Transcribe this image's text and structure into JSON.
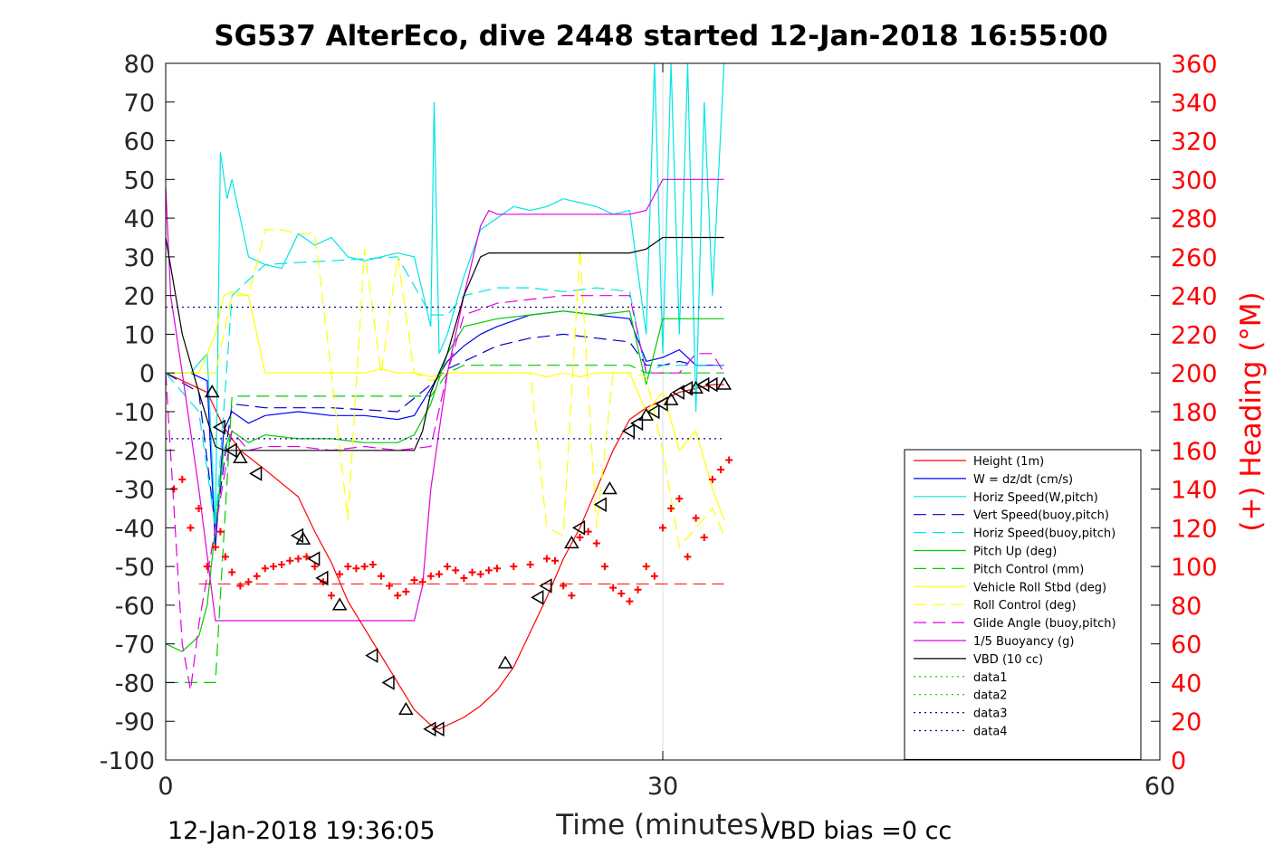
{
  "chart_data": {
    "type": "line",
    "title": "SG537 AlterEco, dive 2448 started 12-Jan-2018 16:55:00",
    "xlabel": "Time (minutes)",
    "ylabel_right": "(+) Heading (°M)",
    "xlim": [
      0,
      60
    ],
    "ylim": [
      -100,
      80
    ],
    "ylim_right": [
      0,
      360
    ],
    "x_ticks": [
      "0",
      "30",
      "60"
    ],
    "y_ticks": [
      "80",
      "70",
      "60",
      "50",
      "40",
      "30",
      "20",
      "10",
      "0",
      "-10",
      "-20",
      "-30",
      "-40",
      "-50",
      "-60",
      "-70",
      "-80",
      "-90",
      "-100"
    ],
    "y_ticks_right": [
      "360",
      "340",
      "320",
      "300",
      "280",
      "260",
      "240",
      "220",
      "200",
      "180",
      "160",
      "140",
      "120",
      "100",
      "80",
      "60",
      "40",
      "20",
      "0"
    ],
    "grid": "x only at 30",
    "legend_position": "lower-right",
    "footer_left": "12-Jan-2018 19:36:05",
    "footer_right": "VBD bias =0 cc",
    "series": [
      {
        "name": "Height (1m)",
        "color": "#ff0000",
        "style": "solid",
        "x": [
          0,
          2.5,
          3.5,
          4.5,
          6,
          8,
          9,
          10,
          11,
          12,
          13,
          14,
          15,
          15.5,
          16,
          16.5,
          17,
          17.5,
          18,
          19,
          20,
          21,
          22,
          23,
          24,
          25,
          26,
          27,
          28,
          29,
          30,
          31,
          32,
          33,
          33.7
        ],
        "y": [
          0,
          -5,
          -14,
          -20,
          -25,
          -32,
          -41,
          -49,
          -59,
          -66,
          -73,
          -80,
          -87,
          -89,
          -91,
          -92,
          -91,
          -90,
          -89,
          -86,
          -82,
          -76,
          -67,
          -58,
          -48,
          -40,
          -30,
          -20,
          -12,
          -9,
          -7,
          -5,
          -4,
          -3,
          -3
        ]
      },
      {
        "name": "W = dz/dt (cm/s)",
        "color": "#0000ff",
        "style": "solid",
        "x": [
          0,
          1.5,
          2.5,
          3,
          3.5,
          4,
          5,
          6,
          8,
          10,
          12,
          14,
          15,
          16,
          17,
          18,
          19,
          20,
          22,
          24,
          26,
          28,
          29,
          30,
          31,
          32,
          33,
          33.7
        ],
        "y": [
          0,
          0,
          -2,
          -45,
          -15,
          -10,
          -13,
          -11,
          -10,
          -11,
          -11,
          -12,
          -11,
          -4,
          3,
          7,
          10,
          12,
          15,
          16,
          15,
          14,
          3,
          4,
          6,
          2,
          2,
          2
        ]
      },
      {
        "name": "Horiz Speed(W,pitch)",
        "color": "#00e5e5",
        "style": "solid",
        "x": [
          0,
          1.5,
          2.5,
          3,
          3.3,
          3.7,
          4,
          5,
          6,
          7,
          8,
          9,
          10,
          11,
          12,
          13,
          14,
          15,
          16,
          16.2,
          16.5,
          17,
          18,
          19,
          20,
          21,
          22,
          23,
          24,
          25,
          26,
          27,
          28,
          29,
          29.5,
          30,
          30.5,
          31,
          31.5,
          32,
          32.5,
          33,
          33.7
        ],
        "y": [
          0,
          0,
          5,
          -40,
          57,
          45,
          50,
          30,
          28,
          27,
          36,
          33,
          35,
          30,
          29,
          30,
          31,
          30,
          12,
          70,
          5,
          10,
          25,
          37,
          40,
          43,
          42,
          43,
          45,
          44,
          43,
          41,
          42,
          10,
          80,
          5,
          80,
          10,
          80,
          -10,
          70,
          20,
          80
        ]
      },
      {
        "name": "Vert Speed(buoy,pitch)",
        "color": "#0000cc",
        "style": "dashed",
        "x": [
          0,
          2,
          3,
          4,
          6,
          10,
          14,
          16,
          17,
          18,
          20,
          22,
          24,
          26,
          28,
          29,
          30,
          31,
          32,
          33,
          33.7
        ],
        "y": [
          0,
          -5,
          -40,
          -8,
          -9,
          -9,
          -10,
          -3,
          1,
          3,
          7,
          9,
          10,
          9,
          8,
          2,
          2,
          3,
          2,
          2,
          2
        ]
      },
      {
        "name": "Horiz Speed(buoy,pitch)",
        "color": "#00e5e5",
        "style": "dashed",
        "x": [
          0,
          2,
          3,
          4,
          6,
          10,
          14,
          16,
          17,
          18,
          20,
          22,
          24,
          26,
          28,
          29,
          30,
          31,
          32,
          33,
          33.7
        ],
        "y": [
          0,
          -10,
          -40,
          20,
          28,
          29,
          30,
          15,
          15,
          20,
          22,
          22,
          21,
          22,
          21,
          0,
          2,
          2,
          2,
          2,
          2
        ]
      },
      {
        "name": "Pitch Up (deg)",
        "color": "#00cc00",
        "style": "solid",
        "x": [
          0,
          1,
          2,
          2.5,
          3,
          3.5,
          4,
          5,
          6,
          8,
          10,
          12,
          14,
          15,
          16,
          17,
          18,
          20,
          22,
          24,
          26,
          28,
          29,
          30,
          31,
          32,
          33,
          33.7
        ],
        "y": [
          -70,
          -72,
          -68,
          -60,
          -40,
          -20,
          -15,
          -18,
          -16,
          -17,
          -17,
          -18,
          -18,
          -16,
          -8,
          5,
          12,
          14,
          15,
          16,
          15,
          16,
          -3,
          14,
          14,
          14,
          14,
          14
        ]
      },
      {
        "name": "Pitch Control (mm)",
        "color": "#00cc00",
        "style": "dashed",
        "x": [
          0,
          2,
          3,
          4,
          6,
          10,
          14,
          16,
          17,
          18,
          22,
          26,
          28,
          29,
          33.7
        ],
        "y": [
          -80,
          -80,
          -80,
          -6,
          -6,
          -6,
          -6,
          -6,
          0,
          2,
          2,
          2,
          2,
          0,
          0
        ]
      },
      {
        "name": "Vehicle Roll Stbd (deg)",
        "color": "#ffff00",
        "style": "solid",
        "x": [
          0,
          1,
          2,
          3,
          3.5,
          4,
          5,
          6,
          8,
          9,
          10,
          11,
          12,
          13,
          14,
          15,
          16,
          17,
          18,
          20,
          22,
          23,
          24,
          25,
          26,
          27,
          28,
          29,
          30,
          31,
          32,
          33,
          33.7
        ],
        "y": [
          0,
          0,
          0,
          10,
          20,
          21,
          20,
          0,
          0,
          0,
          0,
          0,
          0,
          1,
          0,
          0,
          -1,
          0,
          0,
          0,
          0,
          -1,
          0,
          -1,
          0,
          0,
          0,
          -10,
          -5,
          -20,
          -15,
          -30,
          -38
        ]
      },
      {
        "name": "Roll Control (deg)",
        "color": "#ffff00",
        "style": "dashed",
        "x": [
          0,
          2,
          3,
          4,
          5,
          6,
          7,
          8,
          9,
          10,
          11,
          12,
          13,
          14,
          15,
          16,
          17,
          18,
          20,
          22,
          23,
          24,
          25,
          26,
          27,
          28,
          29,
          30,
          31,
          32,
          33,
          33.7
        ],
        "y": [
          0,
          0,
          0,
          20,
          20,
          37,
          37,
          36,
          36,
          0,
          -38,
          32,
          0,
          30,
          0,
          -2,
          0,
          0,
          0,
          0,
          -40,
          -42,
          32,
          -40,
          0,
          0,
          -1,
          -20,
          -45,
          -40,
          -35,
          -42
        ]
      },
      {
        "name": "Glide Angle (buoy,pitch)",
        "color": "#e000e0",
        "style": "dashed",
        "x": [
          0,
          1,
          1.5,
          2,
          3,
          4,
          5,
          6,
          8,
          10,
          12,
          14,
          16,
          17,
          18,
          20,
          22,
          24,
          26,
          28,
          29,
          30,
          31,
          32,
          33,
          33.7
        ],
        "y": [
          0,
          -70,
          -82,
          -65,
          -40,
          -15,
          -20,
          -19,
          -19,
          -20,
          -19,
          -20,
          -19,
          0,
          15,
          18,
          19,
          20,
          20,
          20,
          0,
          0,
          0,
          5,
          5,
          0
        ]
      },
      {
        "name": "1/5 Buoyancy (g)",
        "color": "#e000e0",
        "style": "solid",
        "x": [
          0,
          0.3,
          1,
          2,
          3,
          4,
          5,
          10,
          14,
          15,
          15.5,
          16,
          17,
          18,
          19,
          19.5,
          20,
          28,
          29,
          30,
          32,
          33.7
        ],
        "y": [
          48,
          20,
          0,
          -30,
          -64,
          -64,
          -64,
          -64,
          -64,
          -64,
          -55,
          -30,
          0,
          20,
          38,
          42,
          41,
          41,
          42,
          50,
          50,
          50
        ]
      },
      {
        "name": "VBD (10 cc)",
        "color": "#000000",
        "style": "solid",
        "x": [
          0,
          1,
          2,
          3,
          3.5,
          4,
          10,
          14,
          15,
          15.5,
          16,
          17,
          18,
          19,
          19.5,
          20,
          28,
          29,
          30,
          32,
          33.7
        ],
        "y": [
          35,
          10,
          -5,
          -19,
          -20,
          -20,
          -20,
          -20,
          -20,
          -15,
          -5,
          5,
          20,
          30,
          31,
          31,
          31,
          32,
          35,
          35,
          35
        ]
      },
      {
        "name": "data1",
        "color": "#00cc00",
        "style": "dotted",
        "x": [],
        "y": []
      },
      {
        "name": "data2",
        "color": "#00cc00",
        "style": "dotted",
        "x": [],
        "y": []
      },
      {
        "name": "data3",
        "color": "#000080",
        "style": "dotted",
        "x": [
          0,
          33.7
        ],
        "y": [
          17,
          17
        ]
      },
      {
        "name": "data4",
        "color": "#000080",
        "style": "dotted",
        "x": [
          0,
          33.7
        ],
        "y": [
          -17,
          -17
        ]
      }
    ],
    "heading_points": {
      "color": "#ff0000",
      "marker": "+",
      "x": [
        0.5,
        1,
        1.5,
        2,
        2.5,
        3,
        3.3,
        3.6,
        4,
        4.5,
        5,
        5.5,
        6,
        6.5,
        7,
        7.5,
        8,
        8.5,
        9,
        9.5,
        10,
        10.5,
        11,
        11.5,
        12,
        12.5,
        13,
        13.5,
        14,
        14.5,
        15,
        15.5,
        16,
        16.5,
        17,
        17.5,
        18,
        18.5,
        19,
        19.5,
        20,
        21,
        22,
        23,
        23.5,
        24,
        24.5,
        25,
        25.5,
        26,
        26.5,
        27,
        27.5,
        28,
        28.5,
        29,
        29.5,
        30,
        30.5,
        31,
        31.5,
        32,
        32.5,
        33,
        33.5,
        34
      ],
      "y": [
        140,
        145,
        120,
        130,
        100,
        110,
        118,
        105,
        97,
        90,
        92,
        95,
        99,
        100,
        101,
        103,
        104,
        105,
        100,
        92,
        85,
        96,
        100,
        99,
        100,
        101,
        95,
        90,
        85,
        87,
        93,
        92,
        95,
        96,
        100,
        98,
        94,
        97,
        96,
        98,
        99,
        100,
        101,
        104,
        103,
        90,
        85,
        115,
        118,
        112,
        100,
        89,
        86,
        82,
        88,
        100,
        95,
        120,
        130,
        135,
        105,
        125,
        115,
        145,
        150,
        155
      ]
    },
    "heading_reference": {
      "color": "#ff0000",
      "style": "dashed",
      "value": 91
    },
    "triangle_markers": {
      "color": "#000000",
      "x": [
        2.8,
        3.3,
        4,
        4.5,
        5.5,
        8,
        8.3,
        9,
        9.5,
        10.5,
        12.5,
        13.5,
        14.5,
        16,
        16.5,
        20.5,
        22.5,
        23,
        24.5,
        25,
        26.3,
        26.8,
        28,
        28.5,
        29,
        29.5,
        30,
        30.5,
        31,
        31.5,
        32,
        32.5,
        33,
        33.7
      ],
      "y": [
        -5,
        -14,
        -20,
        -22,
        -26,
        -42,
        -43,
        -48,
        -53,
        -60,
        -73,
        -80,
        -87,
        -92,
        -92,
        -75,
        -58,
        -55,
        -44,
        -40,
        -34,
        -30,
        -15,
        -13,
        -11,
        -10,
        -8,
        -7,
        -5,
        -4,
        -4,
        -3,
        -3,
        -3
      ]
    }
  }
}
